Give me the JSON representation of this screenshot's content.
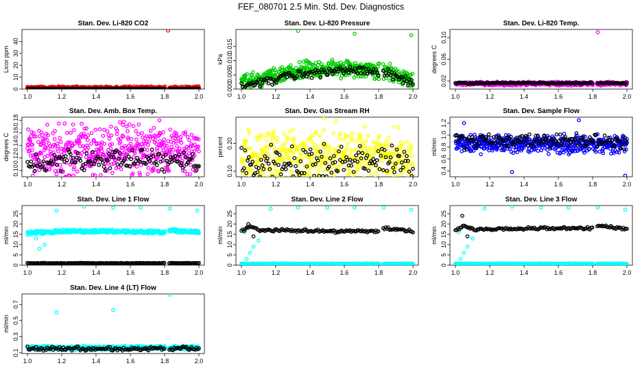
{
  "title": "FEF_080701  2.5 Min. Std. Dev. Diagnostics",
  "colors": {
    "black": "#000000",
    "red": "#ff0000",
    "green": "#00cc00",
    "magenta": "#ff00ff",
    "yellow": "#ffff00",
    "blue": "#0000ff",
    "cyan": "#00ffff"
  },
  "chart_data": [
    {
      "type": "scatter",
      "title": "Stan. Dev. Li-820 CO2",
      "ylabel": "Licor ppm",
      "color": "red",
      "xlim": [
        1.0,
        2.0
      ],
      "ylim": [
        0,
        50
      ],
      "xticks": [
        "1.0",
        "1.2",
        "1.4",
        "1.6",
        "1.8",
        "2.0"
      ],
      "yticks": [
        "0",
        "10",
        "20",
        "30",
        "40"
      ],
      "gap": [
        1.805,
        1.825
      ],
      "series": [
        {
          "color": "red",
          "baseline": 1,
          "noise": 1.5,
          "outliers": [
            [
              1.82,
              49
            ]
          ]
        },
        {
          "color": "black",
          "baseline": 0.3,
          "noise": 0.2,
          "outliers": []
        }
      ]
    },
    {
      "type": "scatter",
      "title": "Stan. Dev. Li-820 Pressure",
      "ylabel": "kPa",
      "color": "green",
      "xlim": [
        1.0,
        2.0
      ],
      "ylim": [
        0,
        0.021
      ],
      "xticks": [
        "1.0",
        "1.2",
        "1.4",
        "1.6",
        "1.8",
        "2.0"
      ],
      "yticks": [
        "0.000",
        "0.005",
        "0.010",
        "0.015"
      ],
      "gap": [
        1.805,
        1.825
      ],
      "series": [
        {
          "color": "green",
          "profile": [
            [
              1.0,
              0.002
            ],
            [
              1.1,
              0.0035
            ],
            [
              1.2,
              0.005
            ],
            [
              1.35,
              0.0065
            ],
            [
              1.5,
              0.0075
            ],
            [
              1.6,
              0.007
            ],
            [
              1.72,
              0.0075
            ],
            [
              1.8,
              0.006
            ],
            [
              1.85,
              0.007
            ],
            [
              1.9,
              0.0045
            ],
            [
              2.0,
              0.003
            ]
          ],
          "noise": 0.0035,
          "outliers": [
            [
              1.33,
              0.0205
            ],
            [
              1.66,
              0.0195
            ],
            [
              1.99,
              0.019
            ]
          ]
        },
        {
          "color": "black",
          "profile": [
            [
              1.0,
              0.0015
            ],
            [
              1.2,
              0.0035
            ],
            [
              1.4,
              0.0055
            ],
            [
              1.6,
              0.0065
            ],
            [
              1.75,
              0.0065
            ],
            [
              1.85,
              0.006
            ],
            [
              2.0,
              0.002
            ]
          ],
          "noise": 0.002,
          "outliers": []
        }
      ]
    },
    {
      "type": "scatter",
      "title": "Stan. Dev. Li-820 Temp.",
      "ylabel": "degrees C",
      "color": "magenta",
      "xlim": [
        1.0,
        2.0
      ],
      "ylim": [
        0.005,
        0.115
      ],
      "xticks": [
        "1.0",
        "1.2",
        "1.4",
        "1.6",
        "1.8",
        "2.0"
      ],
      "yticks": [
        "0.02",
        "0.06",
        "0.10"
      ],
      "gap": [
        1.805,
        1.825
      ],
      "series": [
        {
          "color": "magenta",
          "baseline": 0.015,
          "noise": 0.004,
          "outliers": [
            [
              1.83,
              0.11
            ]
          ]
        },
        {
          "color": "black",
          "baseline": 0.016,
          "noise": 0.002,
          "outliers": []
        }
      ]
    },
    {
      "type": "scatter",
      "title": "Stan. Dev. Amb. Box Temp.",
      "ylabel": "degrees C",
      "color": "magenta",
      "xlim": [
        1.0,
        2.0
      ],
      "ylim": [
        0.09,
        0.185
      ],
      "xticks": [
        "1.0",
        "1.2",
        "1.4",
        "1.6",
        "1.8",
        "2.0"
      ],
      "yticks": [
        "0.10",
        "0.12",
        "0.14",
        "0.16",
        "0.18"
      ],
      "gap": [],
      "series": [
        {
          "color": "magenta",
          "baseline": 0.13,
          "noise": 0.05,
          "outliers": [
            [
              1.77,
              0.18
            ],
            [
              1.54,
              0.177
            ]
          ]
        },
        {
          "color": "black",
          "baseline": 0.115,
          "noise": 0.02,
          "outliers": []
        }
      ]
    },
    {
      "type": "scatter",
      "title": "Stan. Dev. Gas Stream RH",
      "ylabel": "percent",
      "color": "yellow",
      "xlim": [
        1.0,
        2.0
      ],
      "ylim": [
        0.08,
        0.295
      ],
      "xticks": [
        "1.0",
        "1.2",
        "1.4",
        "1.6",
        "1.8",
        "2.0"
      ],
      "yticks": [
        "0.10",
        "0.20"
      ],
      "gap": [],
      "series": [
        {
          "color": "yellow",
          "baseline": 0.15,
          "noise": 0.12,
          "outliers": [
            [
              1.48,
              0.29
            ],
            [
              1.55,
              0.28
            ]
          ]
        },
        {
          "color": "black",
          "baseline": 0.13,
          "noise": 0.07,
          "outliers": []
        }
      ]
    },
    {
      "type": "scatter",
      "title": "Stan. Dev. Sample Flow",
      "ylabel": "ml/min",
      "color": "blue",
      "xlim": [
        1.0,
        2.0
      ],
      "ylim": [
        0.3,
        1.3
      ],
      "xticks": [
        "1.0",
        "1.2",
        "1.4",
        "1.6",
        "1.8",
        "2.0"
      ],
      "yticks": [
        "0.4",
        "0.6",
        "0.8",
        "1.0",
        "1.2"
      ],
      "gap": [],
      "series": [
        {
          "color": "blue",
          "baseline": 0.85,
          "noise": 0.18,
          "outliers": [
            [
              1.72,
              1.25
            ],
            [
              1.99,
              0.32
            ],
            [
              1.33,
              0.38
            ],
            [
              1.05,
              1.2
            ]
          ]
        },
        {
          "color": "black",
          "baseline": 0.9,
          "noise": 0.15,
          "outliers": []
        }
      ]
    },
    {
      "type": "scatter",
      "title": "Stan. Dev. Line 1 Flow",
      "ylabel": "ml/min",
      "color": "cyan",
      "xlim": [
        1.0,
        2.0
      ],
      "ylim": [
        0,
        29
      ],
      "xticks": [
        "1.0",
        "1.2",
        "1.4",
        "1.6",
        "1.8",
        "2.0"
      ],
      "yticks": [
        "0",
        "5",
        "10",
        "15",
        "20",
        "25"
      ],
      "gap": [
        1.805,
        1.825
      ],
      "series": [
        {
          "color": "cyan",
          "profile": [
            [
              1.0,
              15.5
            ],
            [
              1.05,
              16
            ],
            [
              1.1,
              16
            ],
            [
              1.2,
              16.5
            ],
            [
              1.5,
              16.5
            ],
            [
              1.8,
              16
            ],
            [
              1.83,
              17
            ],
            [
              2.0,
              16
            ]
          ],
          "noise": 1,
          "outliers": [
            [
              1.07,
              8
            ],
            [
              1.1,
              10
            ],
            [
              1.05,
              13
            ],
            [
              1.17,
              26.5
            ],
            [
              1.33,
              28.5
            ],
            [
              1.5,
              28
            ],
            [
              1.66,
              28
            ],
            [
              1.83,
              27.5
            ],
            [
              1.99,
              26.5
            ]
          ]
        },
        {
          "color": "black",
          "baseline": 1,
          "noise": 0.2,
          "outliers": []
        }
      ]
    },
    {
      "type": "scatter",
      "title": "Stan. Dev. Line 2 Flow",
      "ylabel": "ml/min",
      "color": "cyan",
      "xlim": [
        1.0,
        2.0
      ],
      "ylim": [
        0,
        29
      ],
      "xticks": [
        "1.0",
        "1.2",
        "1.4",
        "1.6",
        "1.8",
        "2.0"
      ],
      "yticks": [
        "0",
        "5",
        "10",
        "15",
        "20",
        "25"
      ],
      "gap": [
        1.805,
        1.825
      ],
      "series": [
        {
          "color": "cyan",
          "baseline": 0.7,
          "noise": 0.2,
          "outliers": [
            [
              1.03,
              3
            ],
            [
              1.05,
              6
            ],
            [
              1.07,
              9
            ],
            [
              1.1,
              12
            ],
            [
              1.02,
              16
            ],
            [
              1.17,
              27.5
            ],
            [
              1.33,
              28
            ],
            [
              1.5,
              28
            ],
            [
              1.66,
              28
            ],
            [
              1.83,
              28
            ],
            [
              1.99,
              27
            ]
          ]
        },
        {
          "color": "black",
          "profile": [
            [
              1.0,
              16.5
            ],
            [
              1.05,
              19
            ],
            [
              1.1,
              17
            ],
            [
              1.2,
              17
            ],
            [
              1.5,
              16.5
            ],
            [
              1.8,
              16.5
            ],
            [
              1.83,
              18
            ],
            [
              2.0,
              16.5
            ]
          ],
          "noise": 0.8,
          "outliers": [
            [
              1.04,
              20
            ],
            [
              1.07,
              14
            ]
          ]
        }
      ]
    },
    {
      "type": "scatter",
      "title": "Stan. Dev. Line 3 Flow",
      "ylabel": "ml/min",
      "color": "cyan",
      "xlim": [
        1.0,
        2.0
      ],
      "ylim": [
        0,
        29
      ],
      "xticks": [
        "1.0",
        "1.2",
        "1.4",
        "1.6",
        "1.8",
        "2.0"
      ],
      "yticks": [
        "0",
        "5",
        "10",
        "15",
        "20",
        "25"
      ],
      "gap": [
        1.805,
        1.825
      ],
      "series": [
        {
          "color": "cyan",
          "baseline": 0.7,
          "noise": 0.2,
          "outliers": [
            [
              1.03,
              3
            ],
            [
              1.05,
              6
            ],
            [
              1.07,
              9
            ],
            [
              1.1,
              13
            ],
            [
              1.02,
              16
            ],
            [
              1.17,
              27.5
            ],
            [
              1.33,
              28.5
            ],
            [
              1.5,
              28
            ],
            [
              1.66,
              28
            ],
            [
              1.83,
              28
            ],
            [
              1.99,
              27
            ]
          ]
        },
        {
          "color": "black",
          "profile": [
            [
              1.0,
              17
            ],
            [
              1.05,
              19
            ],
            [
              1.1,
              17.5
            ],
            [
              1.2,
              17.5
            ],
            [
              1.5,
              18
            ],
            [
              1.8,
              18
            ],
            [
              1.83,
              19.5
            ],
            [
              2.0,
              17.5
            ]
          ],
          "noise": 0.7,
          "outliers": [
            [
              1.04,
              24
            ],
            [
              1.07,
              14
            ]
          ]
        }
      ]
    },
    {
      "type": "scatter",
      "title": "Stan. Dev. Line 4 (LT) Flow",
      "ylabel": "ml/min",
      "color": "cyan",
      "xlim": [
        1.0,
        2.0
      ],
      "ylim": [
        0.09,
        0.83
      ],
      "xticks": [
        "1.0",
        "1.2",
        "1.4",
        "1.6",
        "1.8",
        "2.0"
      ],
      "yticks": [
        "0.1",
        "0.3",
        "0.5",
        "0.7"
      ],
      "gap": [
        1.805,
        1.825
      ],
      "series": [
        {
          "color": "cyan",
          "baseline": 0.16,
          "noise": 0.03,
          "outliers": [
            [
              1.17,
              0.6
            ],
            [
              1.5,
              0.63
            ],
            [
              1.83,
              0.82
            ]
          ]
        },
        {
          "color": "black",
          "baseline": 0.15,
          "noise": 0.03,
          "outliers": []
        }
      ]
    }
  ]
}
